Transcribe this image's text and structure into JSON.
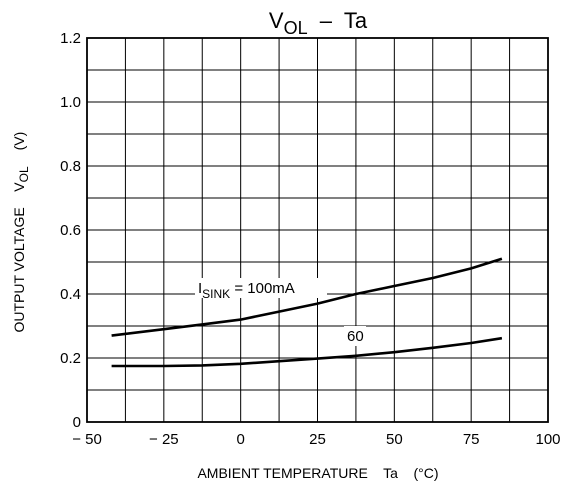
{
  "chart_data": {
    "type": "line",
    "title_main": "V",
    "title_sub": "OL",
    "title_rest": "  –  Ta",
    "xlabel": "AMBIENT TEMPERATURE    Ta    (°C)",
    "ylabel": "OUTPUT VOLTAGE    V",
    "ylabel_sub": "OL",
    "ylabel_unit": "(V)",
    "xlim": [
      -50,
      100
    ],
    "ylim": [
      0,
      1.2
    ],
    "x_ticks": [
      -50,
      -25,
      0,
      25,
      50,
      75,
      100
    ],
    "x_tick_labels": [
      "− 50",
      "− 25",
      "0",
      "25",
      "50",
      "75",
      "100"
    ],
    "y_ticks": [
      0,
      0.2,
      0.4,
      0.6,
      0.8,
      1.0,
      1.2
    ],
    "y_tick_labels": [
      "0",
      "0.2",
      "0.4",
      "0.6",
      "0.8",
      "1.0",
      "1.2"
    ],
    "x_grid_step": 12.5,
    "y_grid_step": 0.1,
    "grid": true,
    "series": [
      {
        "name": "100mA",
        "label_main": "I",
        "label_sub": "SINK",
        "label_rest": " = 100mA",
        "x": [
          -42,
          -25,
          -12.5,
          0,
          12.5,
          25,
          37.5,
          50,
          62.5,
          75,
          85
        ],
        "y": [
          0.27,
          0.29,
          0.305,
          0.32,
          0.345,
          0.37,
          0.4,
          0.425,
          0.45,
          0.48,
          0.51
        ]
      },
      {
        "name": "60",
        "label_main": "60",
        "label_sub": "",
        "label_rest": "",
        "x": [
          -42,
          -25,
          -12.5,
          0,
          12.5,
          25,
          37.5,
          50,
          62.5,
          75,
          85
        ],
        "y": [
          0.175,
          0.175,
          0.177,
          0.182,
          0.19,
          0.198,
          0.207,
          0.218,
          0.232,
          0.247,
          0.262
        ]
      }
    ]
  }
}
